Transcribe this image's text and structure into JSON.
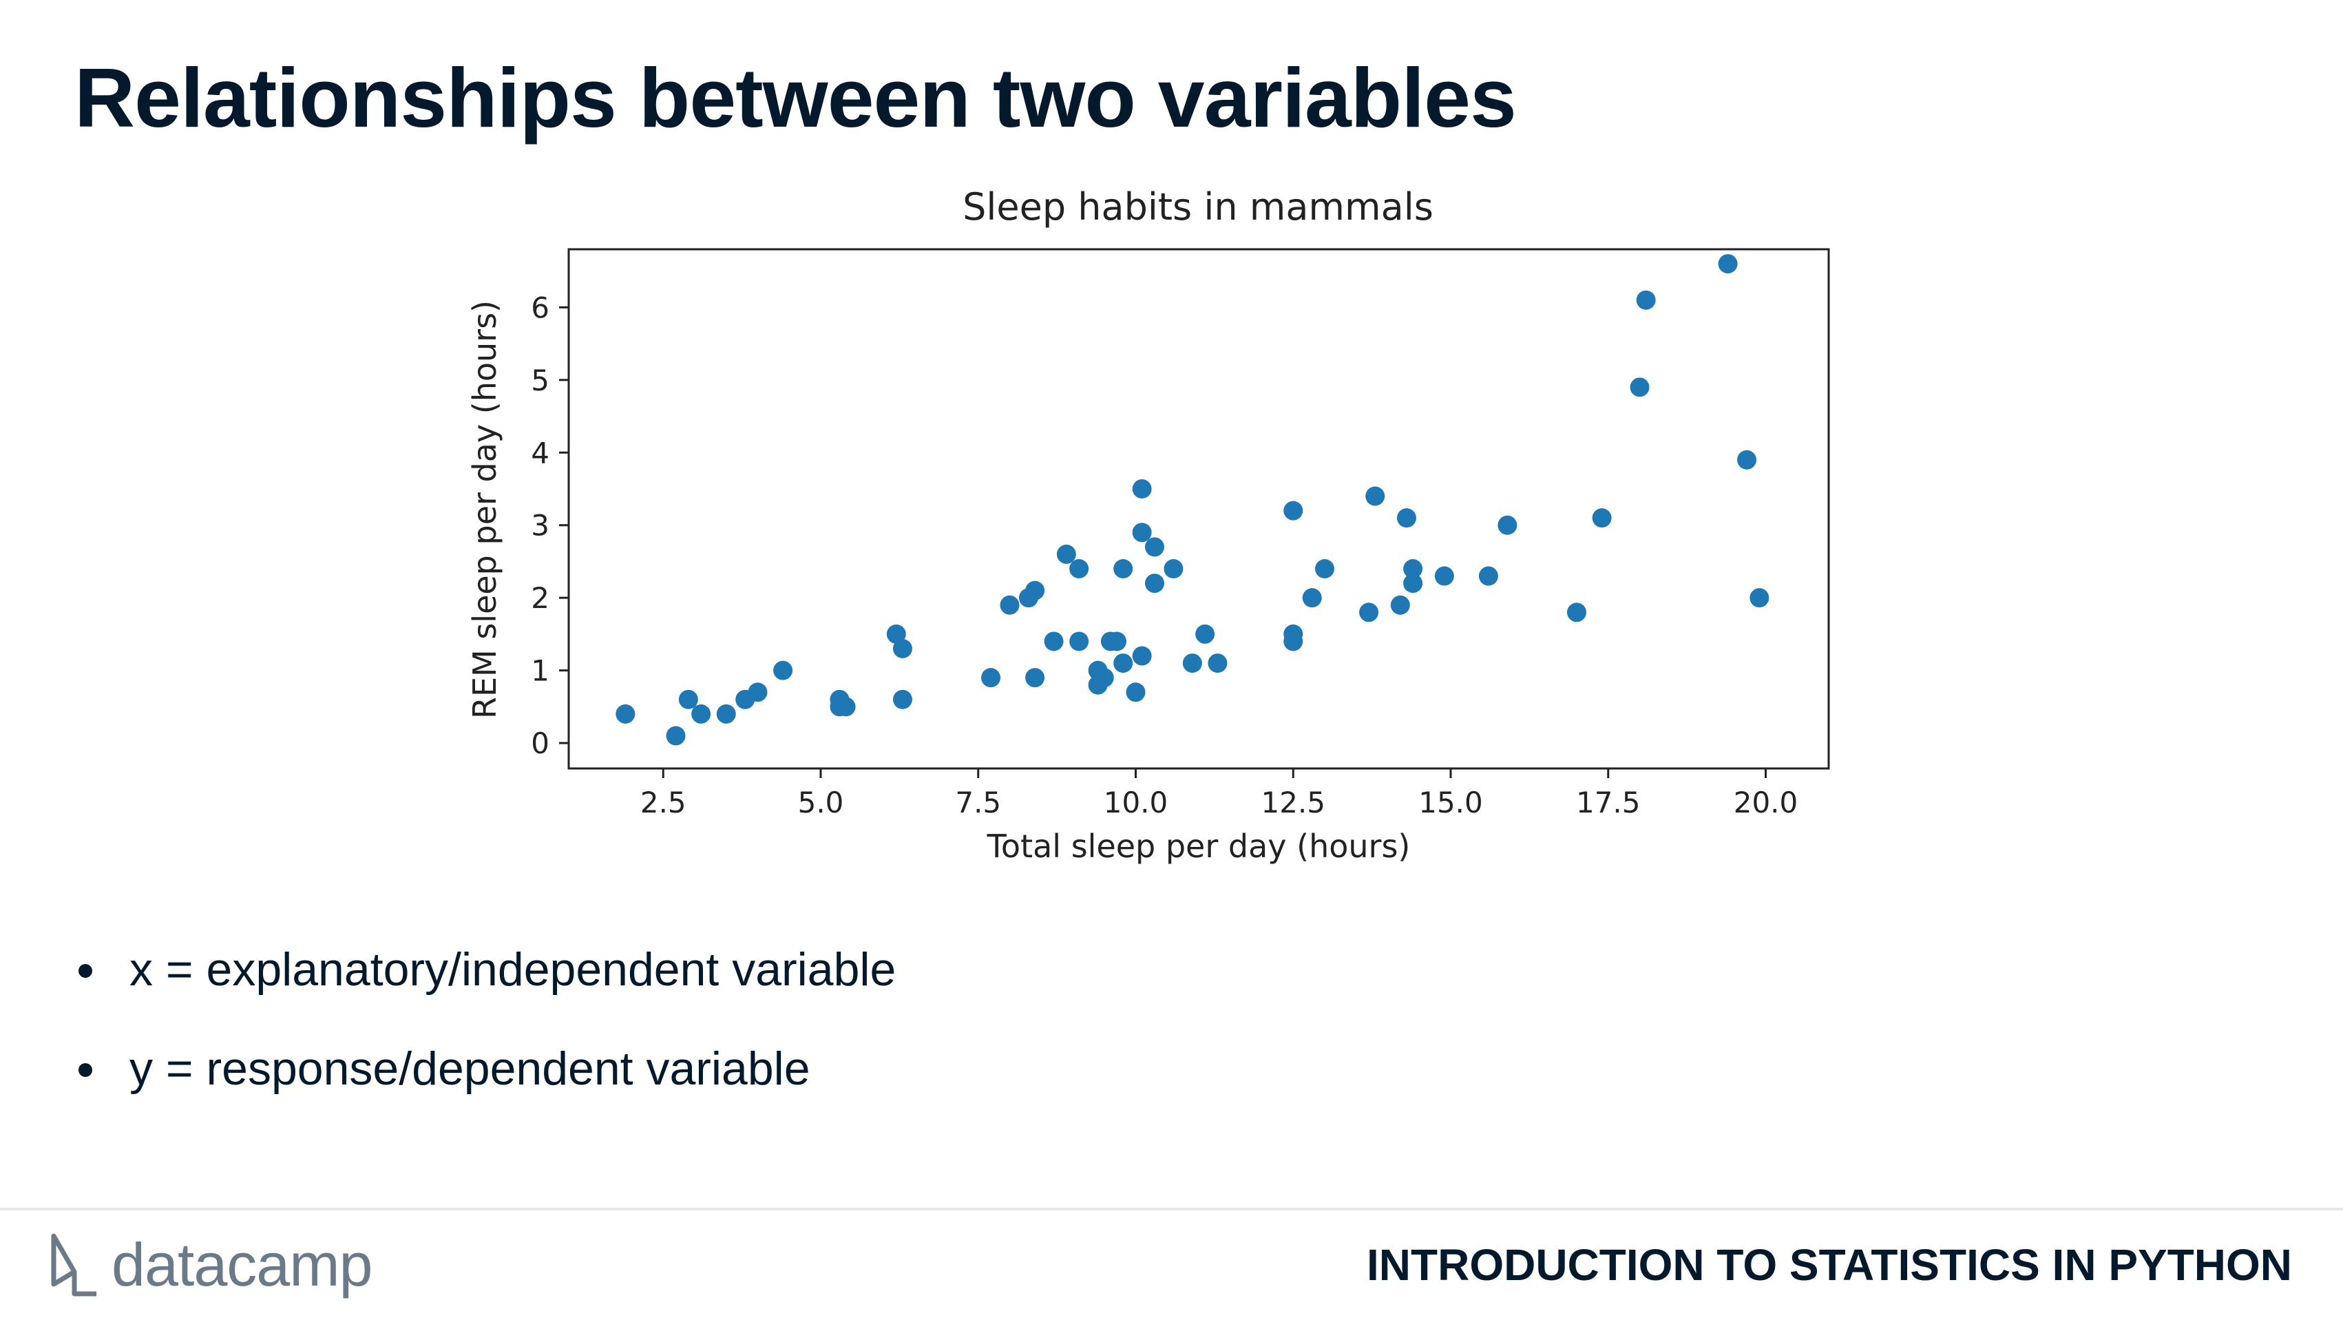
{
  "slide": {
    "title": "Relationships between two variables",
    "bullets": [
      "x = explanatory/independent variable",
      "y = response/dependent variable"
    ]
  },
  "footer": {
    "logo_text": "datacamp",
    "course": "INTRODUCTION TO STATISTICS IN PYTHON"
  },
  "colors": {
    "marker": "#1f77b4",
    "text": "#05192d",
    "logo": "#6b7a88"
  },
  "chart_data": {
    "type": "scatter",
    "title": "Sleep habits in mammals",
    "xlabel": "Total sleep per day (hours)",
    "ylabel": "REM sleep per day (hours)",
    "xlim": [
      1.0,
      21.0
    ],
    "ylim": [
      -0.35,
      6.8
    ],
    "xticks": [
      2.5,
      5.0,
      7.5,
      10.0,
      12.5,
      15.0,
      17.5,
      20.0
    ],
    "xtick_labels": [
      "2.5",
      "5.0",
      "7.5",
      "10.0",
      "12.5",
      "15.0",
      "17.5",
      "20.0"
    ],
    "yticks": [
      0,
      1,
      2,
      3,
      4,
      5,
      6
    ],
    "ytick_labels": [
      "0",
      "1",
      "2",
      "3",
      "4",
      "5",
      "6"
    ],
    "grid": false,
    "points": [
      [
        1.9,
        0.4
      ],
      [
        2.7,
        0.1
      ],
      [
        2.9,
        0.6
      ],
      [
        3.1,
        0.4
      ],
      [
        3.5,
        0.4
      ],
      [
        3.8,
        0.6
      ],
      [
        4.0,
        0.7
      ],
      [
        4.4,
        1.0
      ],
      [
        5.3,
        0.6
      ],
      [
        5.3,
        0.5
      ],
      [
        5.4,
        0.5
      ],
      [
        6.2,
        1.5
      ],
      [
        6.3,
        1.3
      ],
      [
        6.3,
        0.6
      ],
      [
        7.7,
        0.9
      ],
      [
        8.0,
        1.9
      ],
      [
        8.3,
        2.0
      ],
      [
        8.4,
        2.1
      ],
      [
        8.4,
        0.9
      ],
      [
        8.7,
        1.4
      ],
      [
        8.9,
        2.6
      ],
      [
        9.1,
        2.4
      ],
      [
        9.1,
        1.4
      ],
      [
        9.4,
        1.0
      ],
      [
        9.4,
        0.8
      ],
      [
        9.5,
        0.9
      ],
      [
        9.6,
        1.4
      ],
      [
        9.7,
        1.4
      ],
      [
        9.8,
        2.4
      ],
      [
        9.8,
        1.1
      ],
      [
        10.0,
        0.7
      ],
      [
        10.1,
        3.5
      ],
      [
        10.1,
        2.9
      ],
      [
        10.1,
        1.2
      ],
      [
        10.3,
        2.7
      ],
      [
        10.3,
        2.2
      ],
      [
        10.6,
        2.4
      ],
      [
        10.9,
        1.1
      ],
      [
        11.1,
        1.5
      ],
      [
        11.3,
        1.1
      ],
      [
        12.5,
        3.2
      ],
      [
        12.5,
        1.5
      ],
      [
        12.5,
        1.4
      ],
      [
        12.8,
        2.0
      ],
      [
        13.0,
        2.4
      ],
      [
        13.7,
        1.8
      ],
      [
        13.8,
        3.4
      ],
      [
        14.2,
        1.9
      ],
      [
        14.3,
        3.1
      ],
      [
        14.4,
        2.4
      ],
      [
        14.4,
        2.2
      ],
      [
        14.9,
        2.3
      ],
      [
        15.6,
        2.3
      ],
      [
        15.9,
        3.0
      ],
      [
        17.0,
        1.8
      ],
      [
        17.4,
        3.1
      ],
      [
        18.0,
        4.9
      ],
      [
        18.1,
        6.1
      ],
      [
        19.4,
        6.6
      ],
      [
        19.7,
        3.9
      ],
      [
        19.9,
        2.0
      ]
    ]
  }
}
